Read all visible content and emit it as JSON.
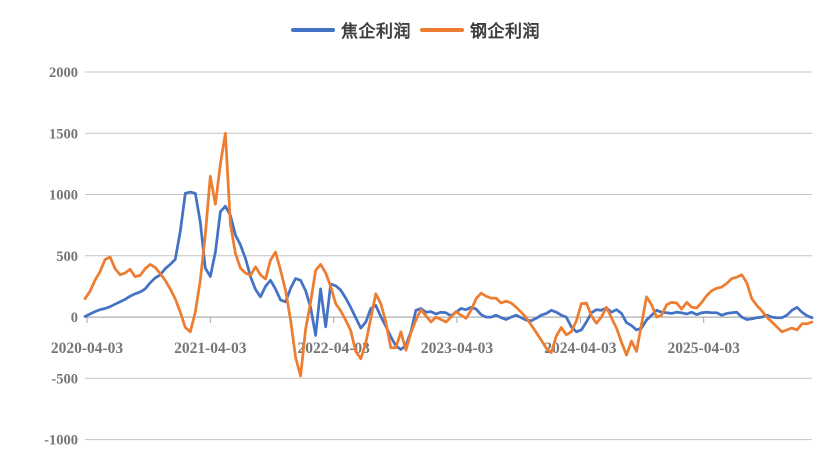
{
  "chart_data": {
    "type": "line",
    "title": "",
    "legend_position": "top",
    "grid": true,
    "x_axis": {
      "tick_labels": [
        "2020-04-03",
        "2021-04-03",
        "2022-04-03",
        "2023-04-03",
        "2024-04-03",
        "2025-04-03"
      ],
      "tick_point_index": [
        0.4,
        25.0,
        49.6,
        74.2,
        98.8,
        123.4
      ],
      "note": "weekly profit series, uniformly sampled; axis crosses at y=0"
    },
    "y_axis": {
      "min": -1000,
      "max": 2000,
      "step": 500,
      "tick_labels": [
        "2000",
        "1500",
        "1000",
        "500",
        "0",
        "-500",
        "-1000"
      ]
    },
    "series": [
      {
        "name": "焦企利润",
        "color": "#4472C4",
        "values": [
          5,
          25,
          45,
          60,
          70,
          85,
          105,
          125,
          145,
          170,
          190,
          205,
          230,
          280,
          320,
          345,
          395,
          430,
          470,
          700,
          1010,
          1020,
          1010,
          775,
          400,
          330,
          530,
          860,
          905,
          830,
          670,
          590,
          480,
          330,
          225,
          165,
          250,
          300,
          230,
          140,
          125,
          235,
          315,
          300,
          215,
          80,
          -150,
          230,
          -80,
          270,
          255,
          220,
          155,
          80,
          -5,
          -90,
          -40,
          70,
          95,
          5,
          -75,
          -160,
          -235,
          -265,
          -230,
          -120,
          55,
          70,
          40,
          45,
          25,
          40,
          35,
          10,
          40,
          70,
          60,
          80,
          65,
          20,
          0,
          0,
          15,
          -5,
          -20,
          0,
          15,
          -5,
          -25,
          -30,
          -10,
          15,
          30,
          55,
          40,
          15,
          0,
          -80,
          -120,
          -105,
          -40,
          35,
          60,
          55,
          75,
          40,
          60,
          30,
          -45,
          -70,
          -105,
          -90,
          -25,
          15,
          55,
          40,
          35,
          30,
          40,
          35,
          25,
          40,
          20,
          35,
          40,
          35,
          35,
          15,
          30,
          35,
          40,
          0,
          -20,
          -15,
          -5,
          0,
          15,
          0,
          -5,
          -5,
          15,
          55,
          80,
          40,
          10,
          -5
        ]
      },
      {
        "name": "钢企利润",
        "color": "#ED7D31",
        "values": [
          150,
          210,
          300,
          370,
          470,
          490,
          395,
          345,
          360,
          390,
          330,
          340,
          395,
          430,
          405,
          355,
          300,
          230,
          150,
          40,
          -85,
          -120,
          40,
          300,
          670,
          1150,
          920,
          1250,
          1500,
          760,
          520,
          400,
          360,
          340,
          410,
          345,
          310,
          465,
          530,
          385,
          215,
          -25,
          -330,
          -480,
          -100,
          120,
          380,
          430,
          360,
          250,
          110,
          50,
          -25,
          -110,
          -280,
          -340,
          -210,
          -10,
          190,
          110,
          -40,
          -250,
          -250,
          -120,
          -270,
          -130,
          -25,
          60,
          10,
          -40,
          0,
          -20,
          -40,
          0,
          45,
          15,
          -10,
          55,
          150,
          195,
          170,
          155,
          155,
          115,
          130,
          115,
          80,
          40,
          -5,
          -65,
          -125,
          -190,
          -255,
          -290,
          -155,
          -85,
          -145,
          -120,
          -30,
          110,
          115,
          10,
          -50,
          0,
          80,
          -5,
          -90,
          -205,
          -310,
          -195,
          -280,
          -60,
          165,
          100,
          0,
          15,
          100,
          120,
          115,
          65,
          120,
          80,
          75,
          120,
          175,
          215,
          235,
          245,
          275,
          315,
          325,
          345,
          280,
          150,
          95,
          50,
          0,
          -40,
          -80,
          -120,
          -105,
          -90,
          -105,
          -55,
          -55,
          -40
        ]
      }
    ],
    "style": {
      "gridline_color": "#c3c3c3",
      "axis_color": "#a6a6a6",
      "tick_label_color": "#757575",
      "line_width": 2.75
    }
  }
}
